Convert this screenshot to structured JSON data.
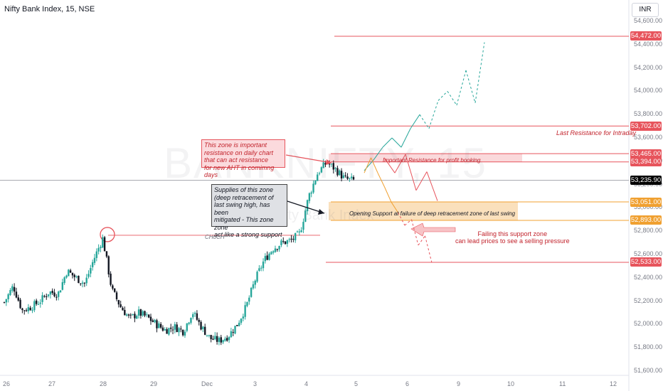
{
  "header": {
    "symbol_title": "Nifty Bank Index, 15, NSE",
    "currency_button": "INR"
  },
  "watermark": {
    "main": "BANKNIFTY, 15",
    "sub": "Nifty Bank Index"
  },
  "colors": {
    "up": "#26a69a",
    "down": "#131722",
    "resistance": "#e7545c",
    "support": "#f0a030",
    "last_price": "#000000"
  },
  "annotations": {
    "red_note": "This zone is important\nresistance on daily chart\nthat can act resistance\nfor new AHT in comimng days",
    "grey_note": "Supplies of this zone\n(deep retracement of\nlast swing high, has been\nmitigated -  This zone\nzone\nact like a strong support",
    "resistance_zone_label": "Important Resistance for profit booking",
    "support_zone_label": "Opening Support at failure of deep retracement zone of last swing",
    "choch_label": "CHoCH",
    "last_resistance_label": "Last Resistance for Intraday",
    "fail_line1": "Failing this support zone",
    "fail_line2": "can lead prices to see a selling pressure"
  },
  "chart_data": {
    "type": "candlestick",
    "title": "Nifty Bank Index, 15, NSE",
    "currency": "INR",
    "y_axis": {
      "range": [
        51600,
        54750
      ],
      "ticks": [
        "51,600.00",
        "51,800.00",
        "52,000.00",
        "52,200.00",
        "52,400.00",
        "52,600.00",
        "52,800.00",
        "53,000.00",
        "53,200.00",
        "53,400.00",
        "53,600.00",
        "53,800.00",
        "54,000.00",
        "54,200.00",
        "54,400.00",
        "54,600.00"
      ]
    },
    "x_axis": {
      "ticks": [
        "26",
        "27",
        "28",
        "29",
        "Dec",
        "3",
        "4",
        "5",
        "6",
        "9",
        "10",
        "11",
        "12"
      ]
    },
    "levels": [
      {
        "value": 54472.0,
        "label": "54,472.00",
        "kind": "resistance"
      },
      {
        "value": 53702.0,
        "label": "53,702.00",
        "kind": "resistance"
      },
      {
        "value": 53465.0,
        "label": "53,465.00",
        "kind": "resistance"
      },
      {
        "value": 53394.0,
        "label": "53,394.00",
        "kind": "resistance"
      },
      {
        "value": 53235.9,
        "label": "53,235.90",
        "kind": "last"
      },
      {
        "value": 53051.0,
        "label": "53,051.00",
        "kind": "support"
      },
      {
        "value": 52893.0,
        "label": "52,893.00",
        "kind": "support"
      },
      {
        "value": 52533.0,
        "label": "52,533.00",
        "kind": "support"
      }
    ],
    "zones": [
      {
        "from": 53394,
        "to": 53465,
        "kind": "resistance"
      },
      {
        "from": 52893,
        "to": 53051,
        "kind": "support"
      }
    ],
    "choch_level": 52765,
    "path_bull": [
      53320,
      53410,
      53520,
      53600,
      53520,
      53680,
      53800,
      53680,
      53920,
      54000,
      53880,
      54180,
      53900,
      54420
    ],
    "path_bear": [
      53300,
      53430,
      53300,
      53180,
      53050,
      52960,
      52850,
      52900,
      52680,
      52760,
      52530
    ],
    "close_path": [
      52190,
      52330,
      52120,
      52150,
      52200,
      52280,
      52260,
      52460,
      52400,
      52350,
      52560,
      52740,
      52300,
      52150,
      52050,
      52100,
      52060,
      52000,
      51950,
      51980,
      51940,
      52110,
      51980,
      51880,
      51860,
      51900,
      52000,
      52150,
      52380,
      52550,
      52650,
      52700,
      52720,
      52780,
      53100,
      53300,
      53390,
      53330,
      53250,
      53235
    ]
  }
}
